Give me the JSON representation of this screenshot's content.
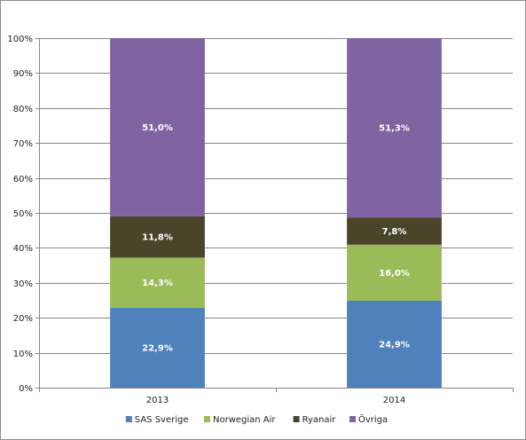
{
  "chart_data": {
    "type": "bar",
    "stacked": true,
    "title": "",
    "xlabel": "",
    "ylabel": "",
    "categories": [
      "2013",
      "2014"
    ],
    "ylim": [
      0,
      100
    ],
    "yticks": [
      "0%",
      "10%",
      "20%",
      "30%",
      "40%",
      "50%",
      "60%",
      "70%",
      "80%",
      "90%",
      "100%"
    ],
    "grid": true,
    "legend_position": "bottom",
    "series": [
      {
        "name": "SAS Sverige",
        "color": "#4F81BD",
        "values": [
          22.9,
          24.9
        ],
        "labels": [
          "22,9%",
          "24,9%"
        ]
      },
      {
        "name": "Norwegian Air",
        "color": "#9BBB59",
        "values": [
          14.3,
          16.0
        ],
        "labels": [
          "14,3%",
          "16,0%"
        ]
      },
      {
        "name": "Ryanair",
        "color": "#4A452A",
        "values": [
          11.8,
          7.8
        ],
        "labels": [
          "11,8%",
          "7,8%"
        ]
      },
      {
        "name": "Övriga",
        "color": "#8064A2",
        "values": [
          51.0,
          51.3
        ],
        "labels": [
          "51,0%",
          "51,3%"
        ]
      }
    ]
  }
}
